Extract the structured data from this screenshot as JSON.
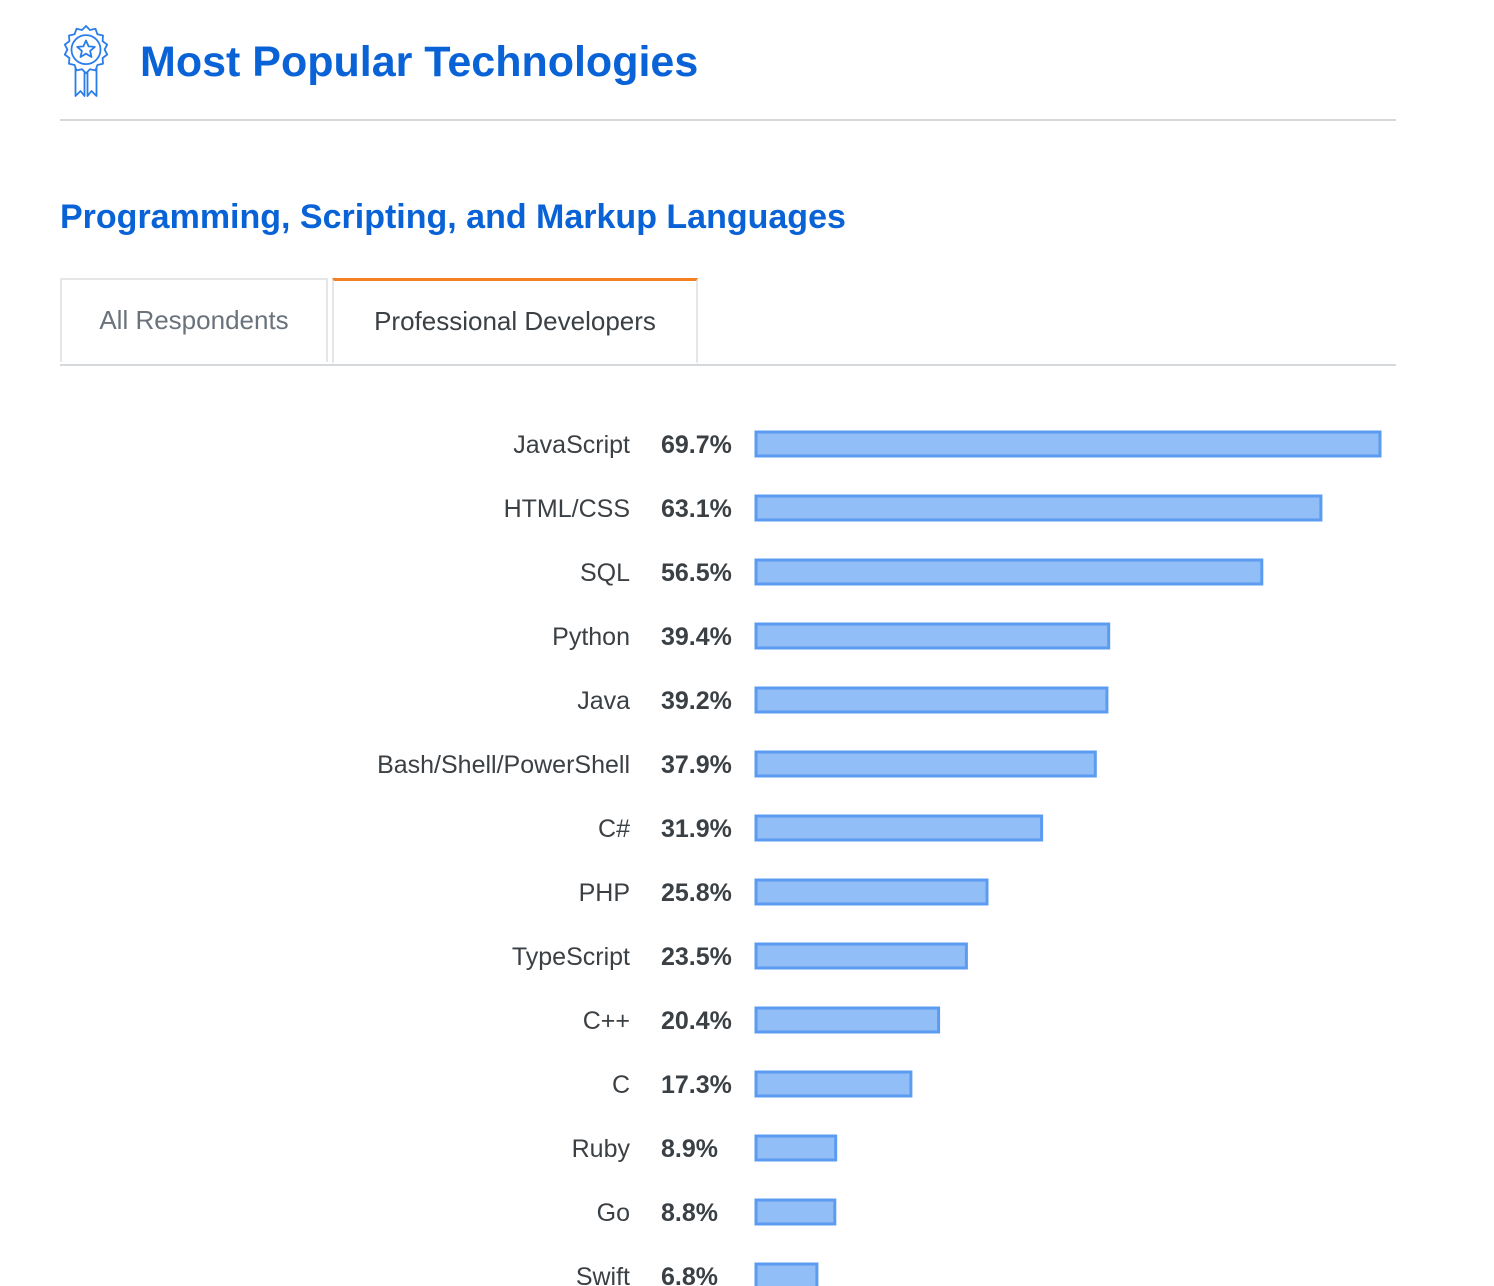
{
  "header": {
    "title": "Most Popular Technologies",
    "icon": "award-ribbon-icon"
  },
  "section": {
    "title": "Programming, Scripting, and Markup Languages"
  },
  "tabs": [
    {
      "label": "All Respondents",
      "active": false
    },
    {
      "label": "Professional Developers",
      "active": true
    }
  ],
  "colors": {
    "accent": "#0a63d6",
    "bar_fill": "#91bef7",
    "bar_stroke": "#5b9cf0",
    "active_tab": "#f48024"
  },
  "chart_data": {
    "type": "bar",
    "orientation": "horizontal",
    "title": "",
    "xlabel": "",
    "ylabel": "",
    "unit": "%",
    "categories": [
      "JavaScript",
      "HTML/CSS",
      "SQL",
      "Python",
      "Java",
      "Bash/Shell/PowerShell",
      "C#",
      "PHP",
      "TypeScript",
      "C++",
      "C",
      "Ruby",
      "Go",
      "Swift"
    ],
    "values": [
      69.7,
      63.1,
      56.5,
      39.4,
      39.2,
      37.9,
      31.9,
      25.8,
      23.5,
      20.4,
      17.3,
      8.9,
      8.8,
      6.8
    ],
    "value_labels": [
      "69.7%",
      "63.1%",
      "56.5%",
      "39.4%",
      "39.2%",
      "37.9%",
      "31.9%",
      "25.8%",
      "23.5%",
      "20.4%",
      "17.3%",
      "8.9%",
      "8.8%",
      "6.8%"
    ],
    "xlim": [
      0,
      69.7
    ],
    "grid": false,
    "legend": "none"
  }
}
